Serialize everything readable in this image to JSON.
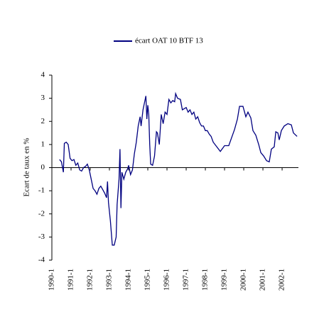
{
  "chart_data": {
    "type": "line",
    "y_label": "Ecart de taux en %",
    "series": [
      {
        "name": "écart OAT 10 BTF 13",
        "color": "#000080",
        "x": [
          1990.4,
          1990.5,
          1990.6,
          1990.65,
          1990.75,
          1990.85,
          1990.95,
          1991.05,
          1991.15,
          1991.25,
          1991.35,
          1991.45,
          1991.55,
          1991.65,
          1991.75,
          1991.85,
          1991.95,
          1992.05,
          1992.15,
          1992.25,
          1992.35,
          1992.45,
          1992.55,
          1992.65,
          1992.75,
          1992.85,
          1992.9,
          1992.95,
          1993.05,
          1993.15,
          1993.25,
          1993.35,
          1993.4,
          1993.5,
          1993.55,
          1993.6,
          1993.65,
          1993.75,
          1993.85,
          1993.95,
          1994.0,
          1994.1,
          1994.2,
          1994.3,
          1994.4,
          1994.5,
          1994.6,
          1994.65,
          1994.75,
          1994.85,
          1994.9,
          1994.95,
          1995.0,
          1995.05,
          1995.1,
          1995.15,
          1995.25,
          1995.35,
          1995.45,
          1995.5,
          1995.6,
          1995.7,
          1995.8,
          1995.9,
          1996.0,
          1996.1,
          1996.2,
          1996.3,
          1996.4,
          1996.45,
          1996.55,
          1996.7,
          1996.8,
          1996.9,
          1997.0,
          1997.1,
          1997.2,
          1997.3,
          1997.4,
          1997.5,
          1997.6,
          1997.7,
          1997.8,
          1997.9,
          1998.0,
          1998.1,
          1998.2,
          1998.3,
          1998.41,
          1998.78,
          1999.0,
          1999.22,
          1999.37,
          1999.52,
          1999.67,
          1999.78,
          1999.96,
          2000.11,
          2000.22,
          2000.37,
          2000.48,
          2000.63,
          2000.78,
          2000.89,
          2001.04,
          2001.19,
          2001.33,
          2001.44,
          2001.59,
          2001.67,
          2001.78,
          2001.85,
          2001.96,
          2002.11,
          2002.3,
          2002.48,
          2002.59,
          2002.78
        ],
        "values": [
          0.35,
          0.25,
          -0.2,
          1.05,
          1.1,
          1.0,
          0.4,
          0.3,
          0.35,
          0.1,
          0.2,
          -0.1,
          -0.15,
          0.0,
          0.05,
          0.15,
          -0.1,
          -0.5,
          -0.9,
          -1.0,
          -1.15,
          -0.9,
          -0.8,
          -0.95,
          -1.1,
          -1.3,
          -0.6,
          -1.5,
          -2.3,
          -3.35,
          -3.35,
          -3.0,
          -1.6,
          -0.5,
          0.8,
          -1.75,
          -0.2,
          -0.5,
          -0.2,
          -0.05,
          0.1,
          -0.3,
          -0.1,
          0.6,
          1.1,
          1.8,
          2.2,
          1.8,
          2.5,
          2.9,
          3.1,
          2.1,
          2.7,
          2.3,
          1.0,
          0.15,
          0.1,
          0.5,
          1.55,
          1.5,
          1.0,
          2.3,
          1.9,
          2.4,
          2.3,
          2.95,
          2.8,
          2.9,
          2.85,
          3.2,
          3.0,
          2.95,
          2.5,
          2.55,
          2.6,
          2.4,
          2.5,
          2.3,
          2.4,
          2.1,
          2.2,
          1.95,
          1.8,
          1.8,
          1.6,
          1.6,
          1.45,
          1.35,
          1.1,
          0.7,
          0.95,
          0.95,
          1.3,
          1.65,
          2.1,
          2.65,
          2.65,
          2.2,
          2.4,
          2.15,
          1.6,
          1.4,
          1.0,
          0.65,
          0.5,
          0.3,
          0.25,
          0.8,
          0.9,
          1.55,
          1.5,
          1.2,
          1.6,
          1.8,
          1.9,
          1.85,
          1.5,
          1.35
        ]
      }
    ],
    "xlim": [
      1990,
      2002.85
    ],
    "xticks": [
      {
        "value": 1990,
        "label": "1990-1"
      },
      {
        "value": 1991,
        "label": "1991-1"
      },
      {
        "value": 1992,
        "label": "1992-1"
      },
      {
        "value": 1993,
        "label": "1993-1"
      },
      {
        "value": 1994,
        "label": "1994-1"
      },
      {
        "value": 1995,
        "label": "1995-1"
      },
      {
        "value": 1996,
        "label": "1996-1"
      },
      {
        "value": 1997,
        "label": "1997-1"
      },
      {
        "value": 1998,
        "label": "1998-1"
      },
      {
        "value": 1999,
        "label": "1999-1"
      },
      {
        "value": 2000,
        "label": "2000-1"
      },
      {
        "value": 2001,
        "label": "2001-1"
      },
      {
        "value": 2002,
        "label": "2002-1"
      }
    ],
    "ylim": [
      -4,
      4
    ],
    "yticks": [
      -4,
      -3,
      -2,
      -1,
      0,
      1,
      2,
      3,
      4
    ],
    "legend": "top"
  }
}
